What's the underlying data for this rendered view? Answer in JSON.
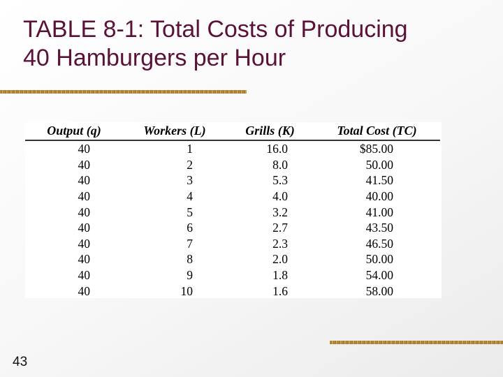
{
  "slide": {
    "title_line1": "TABLE 8-1: Total Costs of Producing",
    "title_line2": "40 Hamburgers per Hour",
    "page_number": "43"
  },
  "table": {
    "headers": [
      "Output (q)",
      "Workers (L)",
      "Grills (K)",
      "Total Cost (TC)"
    ],
    "rows": [
      [
        "40",
        "1",
        "16.0",
        "$85.00"
      ],
      [
        "40",
        "2",
        "8.0",
        "50.00"
      ],
      [
        "40",
        "3",
        "5.3",
        "41.50"
      ],
      [
        "40",
        "4",
        "4.0",
        "40.00"
      ],
      [
        "40",
        "5",
        "3.2",
        "41.00"
      ],
      [
        "40",
        "6",
        "2.7",
        "43.50"
      ],
      [
        "40",
        "7",
        "2.3",
        "46.50"
      ],
      [
        "40",
        "8",
        "2.0",
        "50.00"
      ],
      [
        "40",
        "9",
        "1.8",
        "54.00"
      ],
      [
        "40",
        "10",
        "1.6",
        "58.00"
      ]
    ]
  },
  "colors": {
    "title": "#5a1238",
    "accent_rule": "#c9a14a"
  }
}
